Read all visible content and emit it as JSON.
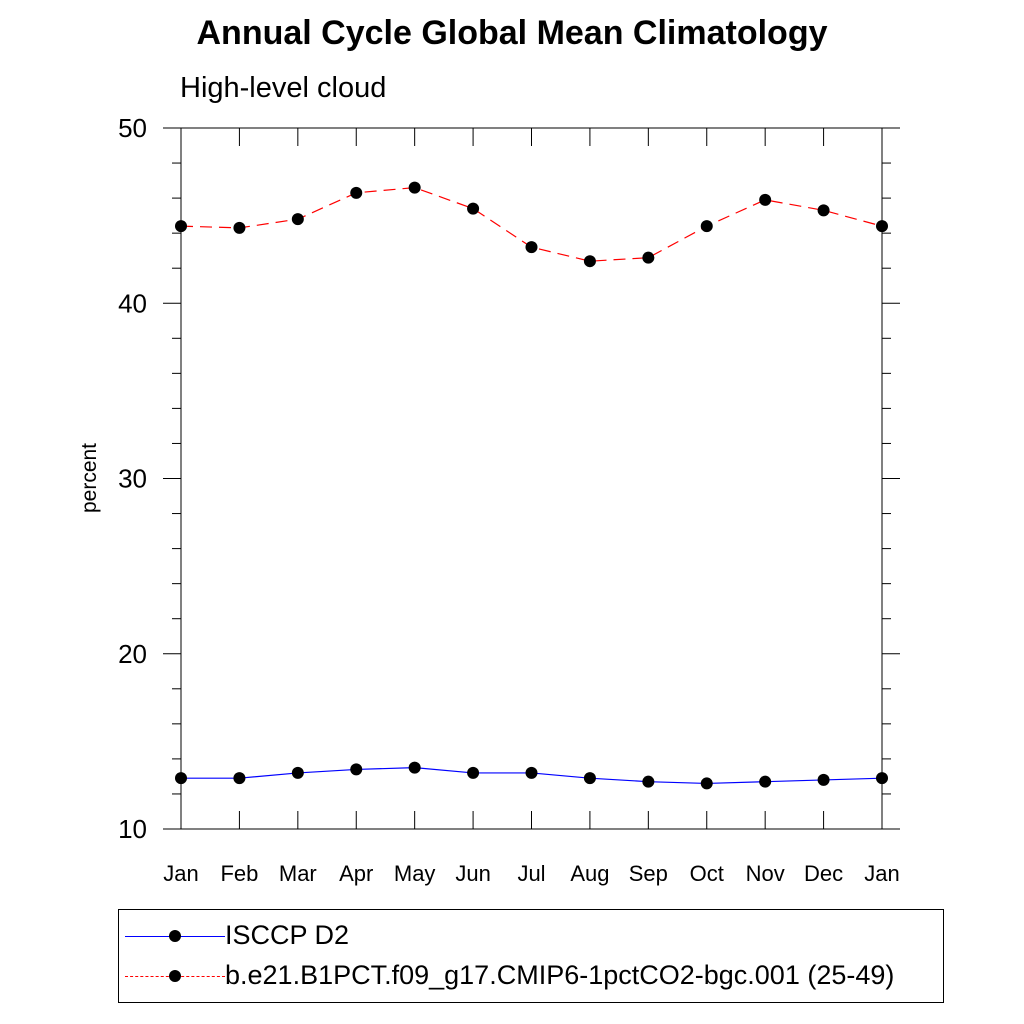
{
  "chart_data": {
    "type": "line",
    "title": "Annual Cycle Global Mean Climatology",
    "subtitle": "High-level cloud",
    "xlabel": "",
    "ylabel": "percent",
    "categories": [
      "Jan",
      "Feb",
      "Mar",
      "Apr",
      "May",
      "Jun",
      "Jul",
      "Aug",
      "Sep",
      "Oct",
      "Nov",
      "Dec",
      "Jan"
    ],
    "ylim": [
      10,
      50
    ],
    "yticks": [
      10,
      20,
      30,
      40,
      50
    ],
    "legend_position": "bottom",
    "series": [
      {
        "name": "ISCCP D2",
        "color": "#0000ff",
        "line_style": "solid",
        "marker": "filled-circle",
        "values": [
          12.9,
          12.9,
          13.2,
          13.4,
          13.5,
          13.2,
          13.2,
          12.9,
          12.7,
          12.6,
          12.7,
          12.8,
          12.9
        ]
      },
      {
        "name": "b.e21.B1PCT.f09_g17.CMIP6-1pctCO2-bgc.001 (25-49)",
        "color": "#ff0000",
        "line_style": "dashed",
        "marker": "filled-circle",
        "values": [
          44.4,
          44.3,
          44.8,
          46.3,
          46.6,
          45.4,
          43.2,
          42.4,
          42.6,
          44.4,
          45.9,
          45.3,
          44.4
        ]
      }
    ]
  }
}
